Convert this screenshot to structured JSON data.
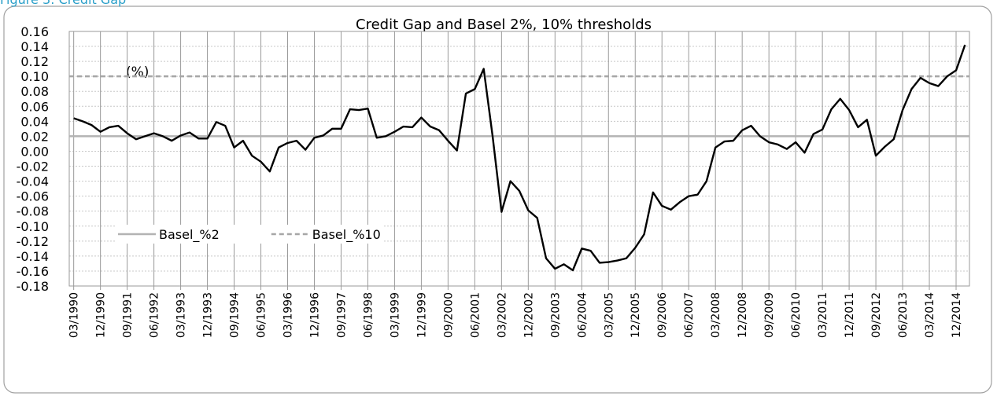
{
  "caption": "Figure 3: Credit Gap",
  "chart_data": {
    "type": "line",
    "title": "Credit Gap and Basel 2%, 10% thresholds",
    "annotation": "(%)",
    "categories": [
      "03/1990",
      null,
      null,
      "12/1990",
      null,
      null,
      "09/1991",
      null,
      null,
      "06/1992",
      null,
      null,
      "03/1993",
      null,
      null,
      "12/1993",
      null,
      null,
      "09/1994",
      null,
      null,
      "06/1995",
      null,
      null,
      "03/1996",
      null,
      null,
      "12/1996",
      null,
      null,
      "09/1997",
      null,
      null,
      "06/1998",
      null,
      null,
      "03/1999",
      null,
      null,
      "12/1999",
      null,
      null,
      "09/2000",
      null,
      null,
      "06/2001",
      null,
      null,
      "03/2002",
      null,
      null,
      "12/2002",
      null,
      null,
      "09/2003",
      null,
      null,
      "06/2004",
      null,
      null,
      "03/2005",
      null,
      null,
      "12/2005",
      null,
      null,
      "09/2006",
      null,
      null,
      "06/2007",
      null,
      null,
      "03/2008",
      null,
      null,
      "12/2008",
      null,
      null,
      "09/2009",
      null,
      null,
      "06/2010",
      null,
      null,
      "03/2011",
      null,
      null,
      "12/2011",
      null,
      null,
      "09/2012",
      null,
      null,
      "06/2013",
      null,
      null,
      "03/2014",
      null,
      null,
      "12/2014",
      null
    ],
    "series": [
      {
        "color": "#000000",
        "values": [
          0.044,
          0.04,
          0.035,
          0.026,
          0.032,
          0.034,
          0.024,
          0.016,
          0.02,
          0.024,
          0.02,
          0.014,
          0.021,
          0.025,
          0.017,
          0.017,
          0.039,
          0.034,
          0.005,
          0.014,
          -0.006,
          -0.014,
          -0.027,
          0.005,
          0.011,
          0.014,
          0.002,
          0.018,
          0.021,
          0.03,
          0.03,
          0.056,
          0.055,
          0.057,
          0.018,
          0.02,
          0.026,
          0.033,
          0.032,
          0.045,
          0.033,
          0.028,
          0.014,
          0.001,
          0.077,
          0.083,
          0.11,
          0.02,
          -0.081,
          -0.04,
          -0.053,
          -0.079,
          -0.089,
          -0.143,
          -0.157,
          -0.151,
          -0.159,
          -0.13,
          -0.133,
          -0.149,
          -0.148,
          -0.146,
          -0.143,
          -0.129,
          -0.111,
          -0.055,
          -0.073,
          -0.078,
          -0.068,
          -0.06,
          -0.058,
          -0.04,
          0.005,
          0.013,
          0.014,
          0.028,
          0.034,
          0.02,
          0.012,
          0.009,
          0.003,
          0.012,
          -0.002,
          0.023,
          0.029,
          0.056,
          0.07,
          0.055,
          0.032,
          0.042,
          -0.006,
          0.006,
          0.016,
          0.055,
          0.083,
          0.098,
          0.091,
          0.087,
          0.1,
          0.108,
          0.142
        ]
      }
    ],
    "thresholds": [
      {
        "name": "Basel_%2",
        "value": 0.02,
        "color": "#b3b3b3",
        "dashed": false
      },
      {
        "name": "Basel_%10",
        "value": 0.1,
        "color": "#a6a6a6",
        "dashed": true
      }
    ],
    "ylim": [
      -0.18,
      0.16
    ],
    "yticks": [
      0.16,
      0.14,
      0.12,
      {
        "value": 0.1,
        "label": "0.10"
      },
      0.08,
      0.06,
      0.04,
      0.02,
      {
        "value": 0,
        "label": "0.00"
      },
      -0.02,
      -0.04,
      -0.06,
      -0.08,
      {
        "value": -0.1,
        "label": "-0.10"
      },
      -0.12,
      -0.14,
      -0.16,
      -0.18
    ],
    "grid": true
  }
}
